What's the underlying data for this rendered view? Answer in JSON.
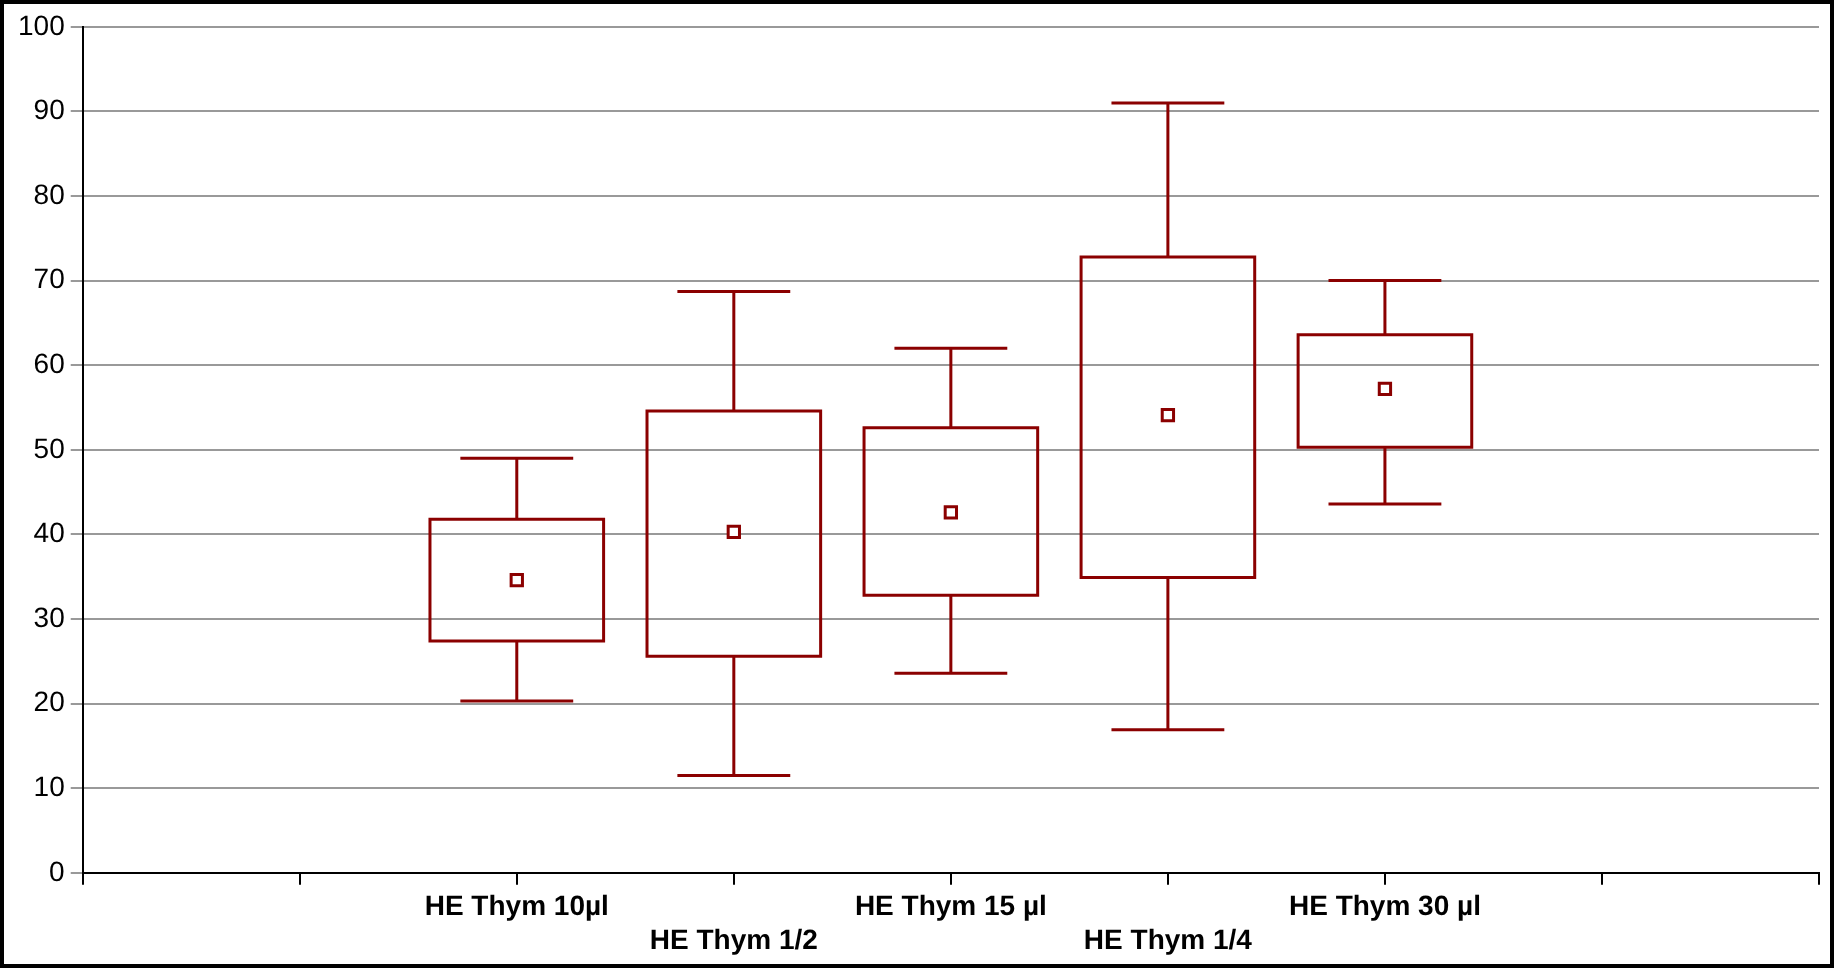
{
  "chart_data": {
    "type": "box",
    "categories": [
      null,
      null,
      "HE Thym 10µl",
      "HE Thym 1/2",
      "HE Thym 15 µl",
      "HE Thym 1/4",
      "HE Thym 30 µl",
      null,
      null
    ],
    "color": "#8b0000",
    "marker": "square",
    "grid": "y",
    "legend": false,
    "ylim": [
      0,
      100
    ],
    "yticks": [
      0,
      10,
      20,
      30,
      40,
      50,
      60,
      70,
      80,
      90,
      100
    ],
    "boxes": [
      null,
      null,
      {
        "low": 20.3,
        "q1": 27.4,
        "median": 34.6,
        "q3": 41.8,
        "high": 49
      },
      {
        "low": 11.5,
        "q1": 25.6,
        "median": 40.3,
        "q3": 54.6,
        "high": 68.7
      },
      {
        "low": 23.6,
        "q1": 32.8,
        "median": 42.6,
        "q3": 52.6,
        "high": 62
      },
      {
        "low": 16.9,
        "q1": 34.9,
        "median": 54.1,
        "q3": 72.8,
        "high": 91
      },
      {
        "low": 43.6,
        "q1": 50.3,
        "median": 57.2,
        "q3": 63.6,
        "high": 70
      },
      null,
      null
    ]
  }
}
